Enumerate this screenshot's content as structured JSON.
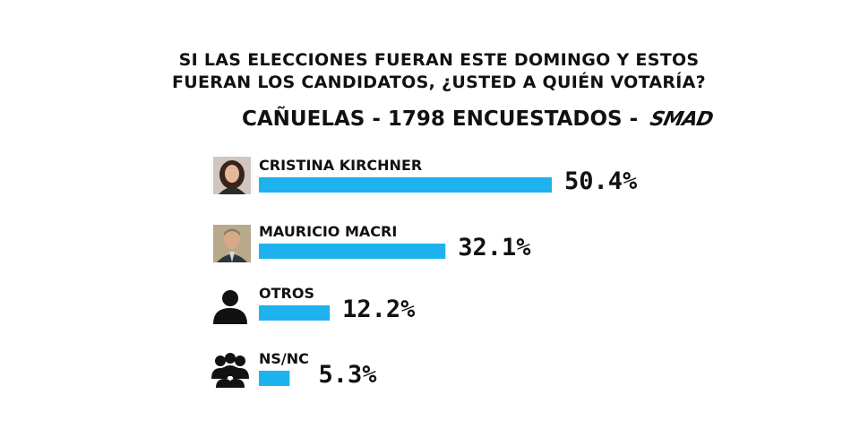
{
  "question": {
    "line1": "SI LAS ELECCIONES FUERAN ESTE DOMINGO Y ESTOS",
    "line2": "FUERAN LOS CANDIDATOS, ¿USTED A QUIÉN VOTARÍA?"
  },
  "subtitle": {
    "text": "CAÑUELAS -  1798 ENCUESTADOS -",
    "logo": "SMAD"
  },
  "colors": {
    "bar": "#1EB2EE",
    "text": "#111111"
  },
  "chart_data": {
    "type": "bar",
    "orientation": "horizontal",
    "categories": [
      "CRISTINA KIRCHNER",
      "MAURICIO MACRI",
      "OTROS",
      "NS/NC"
    ],
    "values": [
      50.4,
      32.1,
      12.2,
      5.3
    ],
    "value_labels": [
      "50.4%",
      "32.1%",
      "12.2%",
      "5.3%"
    ],
    "icons": [
      "photo-cristina",
      "photo-macri",
      "person-icon",
      "group-icon"
    ]
  }
}
